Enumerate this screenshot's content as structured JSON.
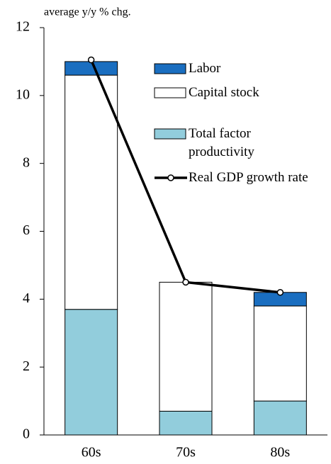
{
  "chart_data": {
    "type": "bar",
    "stacked": true,
    "y_label": "average  y/y % chg.",
    "categories": [
      "60s",
      "70s",
      "80s"
    ],
    "series": [
      {
        "name": "Total factor productivity",
        "color": "#92cddc",
        "values": [
          3.7,
          0.7,
          1.0
        ]
      },
      {
        "name": "Capital stock",
        "color": "#ffffff",
        "values": [
          6.9,
          3.8,
          2.8
        ]
      },
      {
        "name": "Labor",
        "color": "#1a6ec0",
        "values": [
          0.4,
          0,
          0.4
        ]
      },
      {
        "name": "Real GDP growth rate",
        "type": "line",
        "color": "#000000",
        "values": [
          11.05,
          4.5,
          4.2
        ]
      }
    ],
    "legend_order": [
      2,
      1,
      0,
      3
    ],
    "ylim": [
      0,
      12
    ],
    "yticks": [
      0,
      2,
      4,
      6,
      8,
      10,
      12
    ],
    "grid": false
  }
}
